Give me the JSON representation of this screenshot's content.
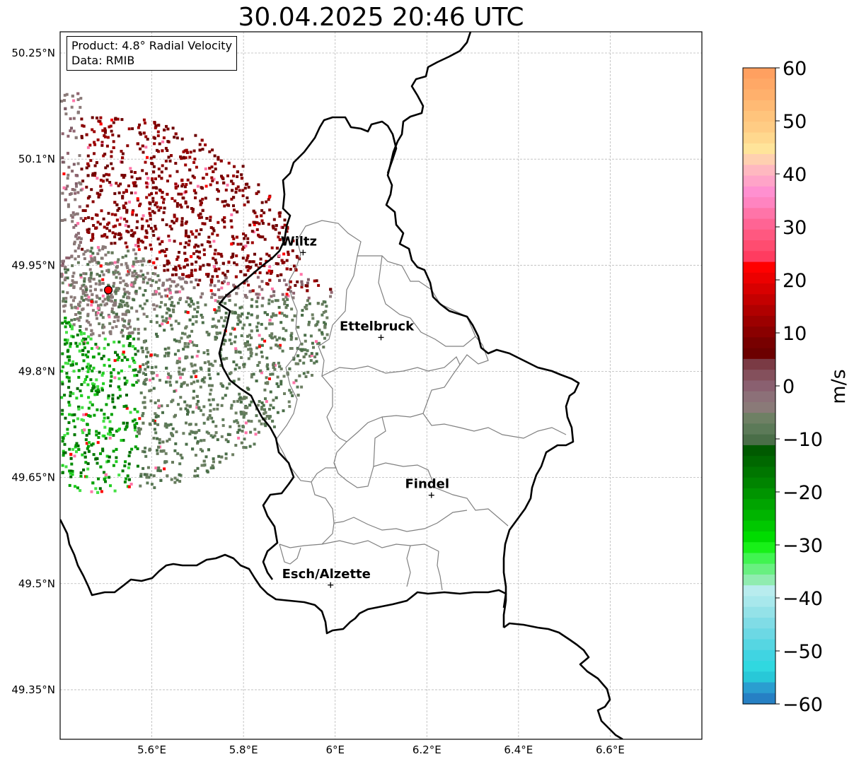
{
  "title": "30.04.2025 20:46 UTC",
  "info": {
    "product": "Product: 4.8° Radial Velocity",
    "data": "Data: RMIB"
  },
  "axes": {
    "lon_range": [
      5.4,
      6.8
    ],
    "lat_range": [
      49.28,
      50.28
    ],
    "x_ticks": [
      {
        "value": 5.6,
        "label": "5.6°E"
      },
      {
        "value": 5.8,
        "label": "5.8°E"
      },
      {
        "value": 6.0,
        "label": "6°E"
      },
      {
        "value": 6.2,
        "label": "6.2°E"
      },
      {
        "value": 6.4,
        "label": "6.4°E"
      },
      {
        "value": 6.6,
        "label": "6.6°E"
      }
    ],
    "y_ticks": [
      {
        "value": 50.25,
        "label": "50.25°N"
      },
      {
        "value": 50.1,
        "label": "50.1°N"
      },
      {
        "value": 49.95,
        "label": "49.95°N"
      },
      {
        "value": 49.8,
        "label": "49.8°N"
      },
      {
        "value": 49.65,
        "label": "49.65°N"
      },
      {
        "value": 49.5,
        "label": "49.5°N"
      },
      {
        "value": 49.35,
        "label": "49.35°N"
      }
    ],
    "grid": true
  },
  "cities": [
    {
      "name": "Wiltz",
      "lon": 5.93,
      "lat": 49.968
    },
    {
      "name": "Ettelbruck",
      "lon": 6.1,
      "lat": 49.848
    },
    {
      "name": "Findel",
      "lon": 6.21,
      "lat": 49.625
    },
    {
      "name": "Esch/Alzette",
      "lon": 5.99,
      "lat": 49.498
    }
  ],
  "radar_site": {
    "lon": 5.505,
    "lat": 49.915
  },
  "colorbar": {
    "label": "m/s",
    "vmin": -60,
    "vmax": 60,
    "ticks": [
      {
        "value": 60,
        "label": "60"
      },
      {
        "value": 50,
        "label": "50"
      },
      {
        "value": 40,
        "label": "40"
      },
      {
        "value": 30,
        "label": "30"
      },
      {
        "value": 20,
        "label": "20"
      },
      {
        "value": 10,
        "label": "10"
      },
      {
        "value": 0,
        "label": "0"
      },
      {
        "value": -10,
        "label": "−10"
      },
      {
        "value": -20,
        "label": "−20"
      },
      {
        "value": -30,
        "label": "−30"
      },
      {
        "value": -40,
        "label": "−40"
      },
      {
        "value": -50,
        "label": "−50"
      },
      {
        "value": -60,
        "label": "−60"
      }
    ],
    "colors_top_to_bottom": [
      "#ffa060",
      "#ffa866",
      "#ffb06c",
      "#ffba74",
      "#ffc47c",
      "#ffcc84",
      "#ffd88e",
      "#ffe49a",
      "#ffd0b0",
      "#ffb8c0",
      "#ffa4c8",
      "#ff90d0",
      "#ff84c0",
      "#ff74a8",
      "#ff6494",
      "#ff5880",
      "#ff4c70",
      "#ff3c60",
      "#ff0000",
      "#ec0000",
      "#d80000",
      "#c40000",
      "#b00000",
      "#9c0000",
      "#8a0000",
      "#780000",
      "#6c0000",
      "#7a3a44",
      "#84505c",
      "#8a6070",
      "#8c7078",
      "#8a7a78",
      "#6e8064",
      "#5c7a58",
      "#4a6e48",
      "#005a00",
      "#006800",
      "#007600",
      "#008400",
      "#009400",
      "#00a400",
      "#00b400",
      "#00c800",
      "#00dc00",
      "#18f018",
      "#40f450",
      "#68f080",
      "#90ecb0",
      "#b8ecee",
      "#a8e8ec",
      "#94e2e8",
      "#80dce6",
      "#6cd8e4",
      "#56d6e2",
      "#40d4e2",
      "#30d8e0",
      "#28c8d8",
      "#2a9ed0",
      "#2680c4"
    ]
  }
}
